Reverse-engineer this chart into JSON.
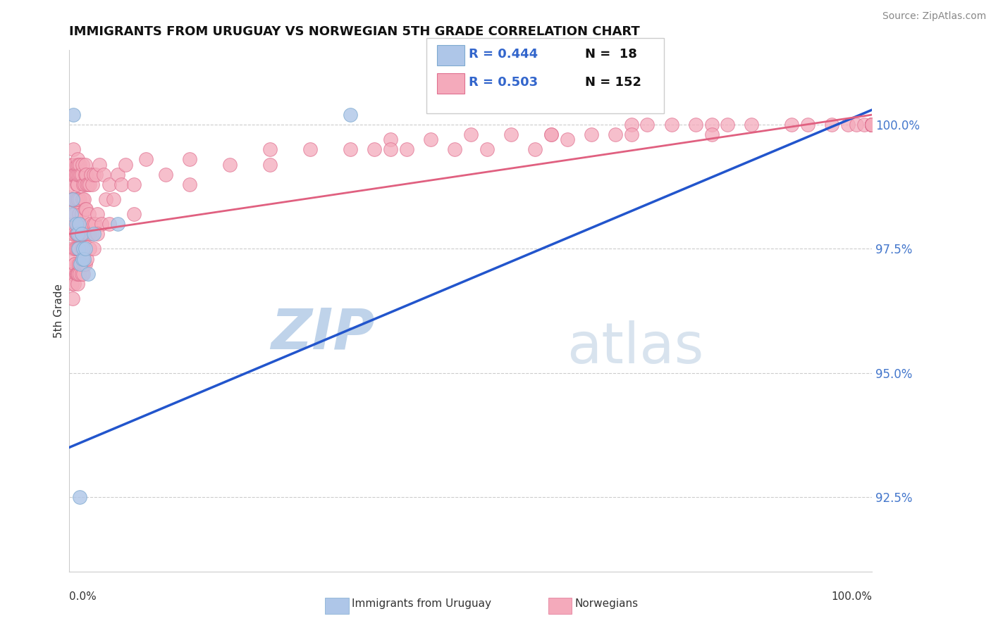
{
  "title": "IMMIGRANTS FROM URUGUAY VS NORWEGIAN 5TH GRADE CORRELATION CHART",
  "source_text": "Source: ZipAtlas.com",
  "ylabel": "5th Grade",
  "xlim": [
    0.0,
    100.0
  ],
  "ylim": [
    91.0,
    101.5
  ],
  "yticks": [
    92.5,
    95.0,
    97.5,
    100.0
  ],
  "ytick_labels": [
    "92.5%",
    "95.0%",
    "97.5%",
    "100.0%"
  ],
  "grid_color": "#cccccc",
  "background_color": "#ffffff",
  "watermark_zip": "ZIP",
  "watermark_atlas": "atlas",
  "watermark_color_zip": "#b8cfe8",
  "watermark_color_atlas": "#c8d8e8",
  "legend_r1": "R = 0.444",
  "legend_n1": "N =  18",
  "legend_r2": "R = 0.503",
  "legend_n2": "N = 152",
  "uruguay_color": "#aec6e8",
  "norway_color": "#f4aabb",
  "uruguay_edge": "#7eaad0",
  "norway_edge": "#e07090",
  "trendline_blue": "#2255cc",
  "trendline_pink": "#e06080",
  "legend_r_color": "#3366cc",
  "ytick_color": "#4477cc",
  "source_color": "#888888",
  "legend_box_color_1": "#aec6e8",
  "legend_box_color_2": "#f4aabb",
  "legend_box_edge_1": "#7eaad0",
  "legend_box_edge_2": "#e07090",
  "uruguay_x": [
    0.2,
    0.4,
    0.5,
    0.8,
    1.0,
    1.1,
    1.2,
    1.3,
    1.4,
    1.5,
    1.6,
    1.7,
    1.8,
    2.0,
    2.3,
    3.0,
    6.0,
    35.0
  ],
  "uruguay_y": [
    98.2,
    98.5,
    100.2,
    98.0,
    97.8,
    97.5,
    98.0,
    92.5,
    97.2,
    97.8,
    97.3,
    97.5,
    97.3,
    97.5,
    97.0,
    97.8,
    98.0,
    100.2
  ],
  "norway_x": [
    0.1,
    0.15,
    0.2,
    0.25,
    0.3,
    0.3,
    0.35,
    0.4,
    0.4,
    0.45,
    0.5,
    0.5,
    0.5,
    0.5,
    0.5,
    0.5,
    0.6,
    0.6,
    0.6,
    0.7,
    0.7,
    0.7,
    0.7,
    0.8,
    0.8,
    0.8,
    0.8,
    0.9,
    0.9,
    0.9,
    1.0,
    1.0,
    1.0,
    1.0,
    1.0,
    1.0,
    1.0,
    1.1,
    1.1,
    1.1,
    1.2,
    1.2,
    1.2,
    1.2,
    1.3,
    1.3,
    1.3,
    1.4,
    1.4,
    1.5,
    1.5,
    1.5,
    1.5,
    1.6,
    1.6,
    1.6,
    1.7,
    1.7,
    1.8,
    1.8,
    1.9,
    1.9,
    2.0,
    2.0,
    2.0,
    2.0,
    2.0,
    2.1,
    2.1,
    2.2,
    2.2,
    2.3,
    2.3,
    2.4,
    2.5,
    2.5,
    2.6,
    2.7,
    2.8,
    2.9,
    3.0,
    3.0,
    3.2,
    3.3,
    3.5,
    3.7,
    4.0,
    4.3,
    4.5,
    5.0,
    5.5,
    6.0,
    6.5,
    7.0,
    8.0,
    9.5,
    12.0,
    15.0,
    20.0,
    25.0,
    30.0,
    35.0,
    38.0,
    40.0,
    42.0,
    45.0,
    48.0,
    50.0,
    52.0,
    55.0,
    58.0,
    60.0,
    62.0,
    65.0,
    68.0,
    70.0,
    72.0,
    75.0,
    78.0,
    80.0,
    82.0,
    85.0,
    90.0,
    92.0,
    95.0,
    97.0,
    98.0,
    99.0,
    100.0,
    100.0,
    100.0,
    100.0,
    100.0,
    100.0,
    100.0,
    100.0,
    100.0,
    100.0,
    100.0,
    100.0,
    100.0,
    100.0,
    100.0,
    100.0,
    100.0,
    100.0,
    100.0,
    100.0,
    100.0,
    100.0,
    100.0,
    100.0,
    100.0,
    100.0,
    100.0,
    100.0
  ],
  "norway_y": [
    98.5,
    99.0,
    98.0,
    99.2,
    97.8,
    98.5,
    98.8,
    97.5,
    99.0,
    98.2,
    98.0,
    98.5,
    99.2,
    97.3,
    99.5,
    97.0,
    97.8,
    98.5,
    99.0,
    97.5,
    98.2,
    99.0,
    97.2,
    97.8,
    98.5,
    99.0,
    97.5,
    97.8,
    98.8,
    99.2,
    97.5,
    98.0,
    98.8,
    99.3,
    97.2,
    99.0,
    98.5,
    97.8,
    98.5,
    99.2,
    97.5,
    98.2,
    99.0,
    97.8,
    97.8,
    98.5,
    99.2,
    98.0,
    99.0,
    97.5,
    98.2,
    99.0,
    97.8,
    97.8,
    98.5,
    99.2,
    97.8,
    98.8,
    97.8,
    98.5,
    97.8,
    98.8,
    97.8,
    98.3,
    99.0,
    97.8,
    99.2,
    98.3,
    99.0,
    97.8,
    98.8,
    97.8,
    98.8,
    98.2,
    97.8,
    98.8,
    98.0,
    99.0,
    97.8,
    98.8,
    98.0,
    99.0,
    98.0,
    99.0,
    98.2,
    99.2,
    98.0,
    99.0,
    98.5,
    98.8,
    98.5,
    99.0,
    98.8,
    99.2,
    98.8,
    99.3,
    99.0,
    99.3,
    99.2,
    99.5,
    99.5,
    99.5,
    99.5,
    99.7,
    99.5,
    99.7,
    99.5,
    99.8,
    99.5,
    99.8,
    99.5,
    99.8,
    99.7,
    99.8,
    99.8,
    100.0,
    100.0,
    100.0,
    100.0,
    100.0,
    100.0,
    100.0,
    100.0,
    100.0,
    100.0,
    100.0,
    100.0,
    100.0,
    100.0,
    100.0,
    100.0,
    100.0,
    100.0,
    100.0,
    100.0,
    100.0,
    100.0,
    100.0,
    100.0,
    100.0,
    100.0,
    100.0,
    100.0,
    100.0,
    100.0,
    100.0,
    100.0,
    100.0,
    100.0,
    100.0,
    100.0,
    100.0,
    100.0,
    100.0,
    100.0,
    100.0
  ],
  "norway_low_x": [
    0.2,
    0.3,
    0.4,
    0.5,
    0.6,
    0.7,
    0.8,
    0.9,
    1.0,
    1.0,
    1.1,
    1.2,
    1.3,
    1.4,
    1.5,
    1.6,
    1.7,
    1.8,
    2.0,
    2.2,
    2.5,
    3.0,
    3.5,
    5.0,
    8.0,
    15.0,
    25.0,
    40.0,
    60.0,
    70.0,
    80.0,
    100.0
  ],
  "norway_low_y": [
    97.0,
    96.8,
    96.5,
    97.0,
    96.8,
    97.2,
    97.0,
    97.0,
    96.8,
    97.0,
    97.0,
    97.2,
    97.0,
    97.2,
    97.0,
    97.2,
    97.0,
    97.2,
    97.2,
    97.3,
    97.5,
    97.5,
    97.8,
    98.0,
    98.2,
    98.8,
    99.2,
    99.5,
    99.8,
    99.8,
    99.8,
    100.0
  ],
  "blue_trend_x": [
    0.0,
    100.0
  ],
  "blue_trend_y": [
    93.5,
    100.3
  ],
  "pink_trend_x": [
    0.0,
    100.0
  ],
  "pink_trend_y": [
    97.8,
    100.2
  ]
}
